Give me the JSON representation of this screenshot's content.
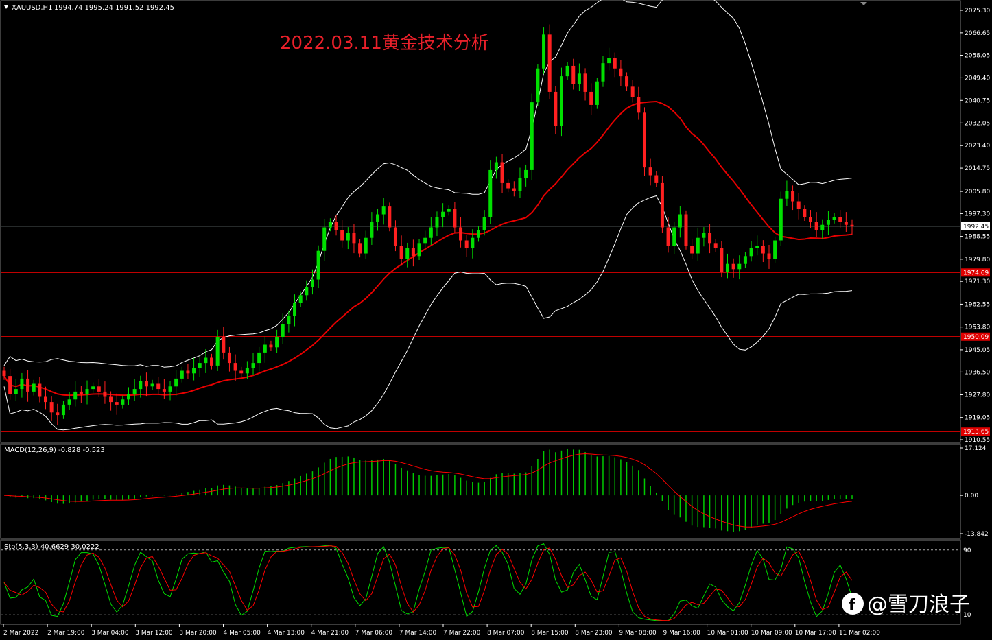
{
  "header": {
    "symbol": "XAUUSD,H1",
    "ohlc": "1994.74 1995.24 1991.52 1992.45",
    "annotation": "2022.03.11黄金技术分析"
  },
  "colors": {
    "background": "#000000",
    "bull": "#00e000",
    "bear": "#ff2020",
    "ma_red": "#e80000",
    "band_white": "#ffffff",
    "hline": "#ff0000",
    "macd_hist": "#00cc00",
    "signal": "#ff0000",
    "stoch_main": "#00dd00",
    "stoch_signal": "#ff0000"
  },
  "watermark": "@雪刀浪子",
  "chart_data": [
    {
      "type": "candlestick",
      "symbol": "XAUUSD,H1",
      "ylim": [
        1907.0,
        2078.0
      ],
      "y_ticks": [
        "2075.30",
        "2066.65",
        "2058.05",
        "2049.40",
        "2040.75",
        "2032.05",
        "2023.40",
        "2014.75",
        "2005.80",
        "1997.30",
        "1988.55",
        "1979.80",
        "1971.30",
        "1962.55",
        "1953.80",
        "1945.05",
        "1936.50",
        "1927.80",
        "1919.05",
        "1910.55"
      ],
      "x_ticks": [
        "2 Mar 2022",
        "2 Mar 19:00",
        "3 Mar 04:00",
        "3 Mar 12:00",
        "3 Mar 20:00",
        "4 Mar 05:00",
        "4 Mar 13:00",
        "4 Mar 21:00",
        "7 Mar 06:00",
        "7 Mar 14:00",
        "7 Mar 22:00",
        "8 Mar 07:00",
        "8 Mar 15:00",
        "8 Mar 23:00",
        "9 Mar 08:00",
        "9 Mar 16:00",
        "10 Mar 01:00",
        "10 Mar 09:00",
        "10 Mar 17:00",
        "11 Mar 02:00"
      ],
      "close_values": [
        1935,
        1928,
        1930,
        1934,
        1929,
        1932,
        1927,
        1925,
        1921,
        1920,
        1924,
        1926,
        1929,
        1928,
        1930,
        1931,
        1929,
        1927,
        1925,
        1924,
        1926,
        1928,
        1930,
        1933,
        1931,
        1932,
        1930,
        1929,
        1931,
        1934,
        1937,
        1936,
        1938,
        1940,
        1942,
        1939,
        1950,
        1944,
        1940,
        1937,
        1936,
        1938,
        1940,
        1944,
        1947,
        1946,
        1950,
        1955,
        1958,
        1963,
        1966,
        1969,
        1972,
        1983,
        1992,
        1994,
        1991,
        1987,
        1990,
        1986,
        1982,
        1988,
        1994,
        1997,
        2000,
        1992,
        1985,
        1980,
        1984,
        1981,
        1986,
        1988,
        1992,
        1996,
        1998,
        1999,
        1992,
        1987,
        1984,
        1988,
        1991,
        1996,
        2014,
        2017,
        2009,
        2007,
        2006,
        2011,
        2014,
        2040,
        2053,
        2066,
        2044,
        2031,
        2050,
        2054,
        2047,
        2051,
        2044,
        2039,
        2048,
        2055,
        2057,
        2053,
        2050,
        2046,
        2042,
        2036,
        2015,
        2012,
        2009,
        1992,
        1985,
        1992,
        1997,
        1985,
        1982,
        1988,
        1990,
        1986,
        1984,
        1975,
        1978,
        1976,
        1978,
        1981,
        1984,
        1985,
        1982,
        1980,
        1987,
        2003,
        2006,
        2002,
        1999,
        1996,
        1994,
        1991,
        1993,
        1995,
        1996,
        1994,
        1993,
        1992.45
      ],
      "horizontal_levels": [
        {
          "value": 1974.69,
          "label": "1974.69"
        },
        {
          "value": 1950.09,
          "label": "1950.09"
        },
        {
          "value": 1913.65,
          "label": "1913.65"
        }
      ],
      "current_price": {
        "value": 1992.45,
        "label": "1992.45"
      }
    },
    {
      "type": "bar",
      "title": "MACD(12,26,9) -0.828 -0.523",
      "ylim": [
        -13.842,
        17.124
      ],
      "y_ticks": [
        "17.124",
        "0.00",
        "-13.842"
      ]
    },
    {
      "type": "line",
      "title": "Sto(5,3,3) 40.6629 30.0222",
      "ylim": [
        0,
        100
      ],
      "y_ticks": [
        "90",
        "10"
      ],
      "levels": [
        90,
        10
      ]
    }
  ]
}
